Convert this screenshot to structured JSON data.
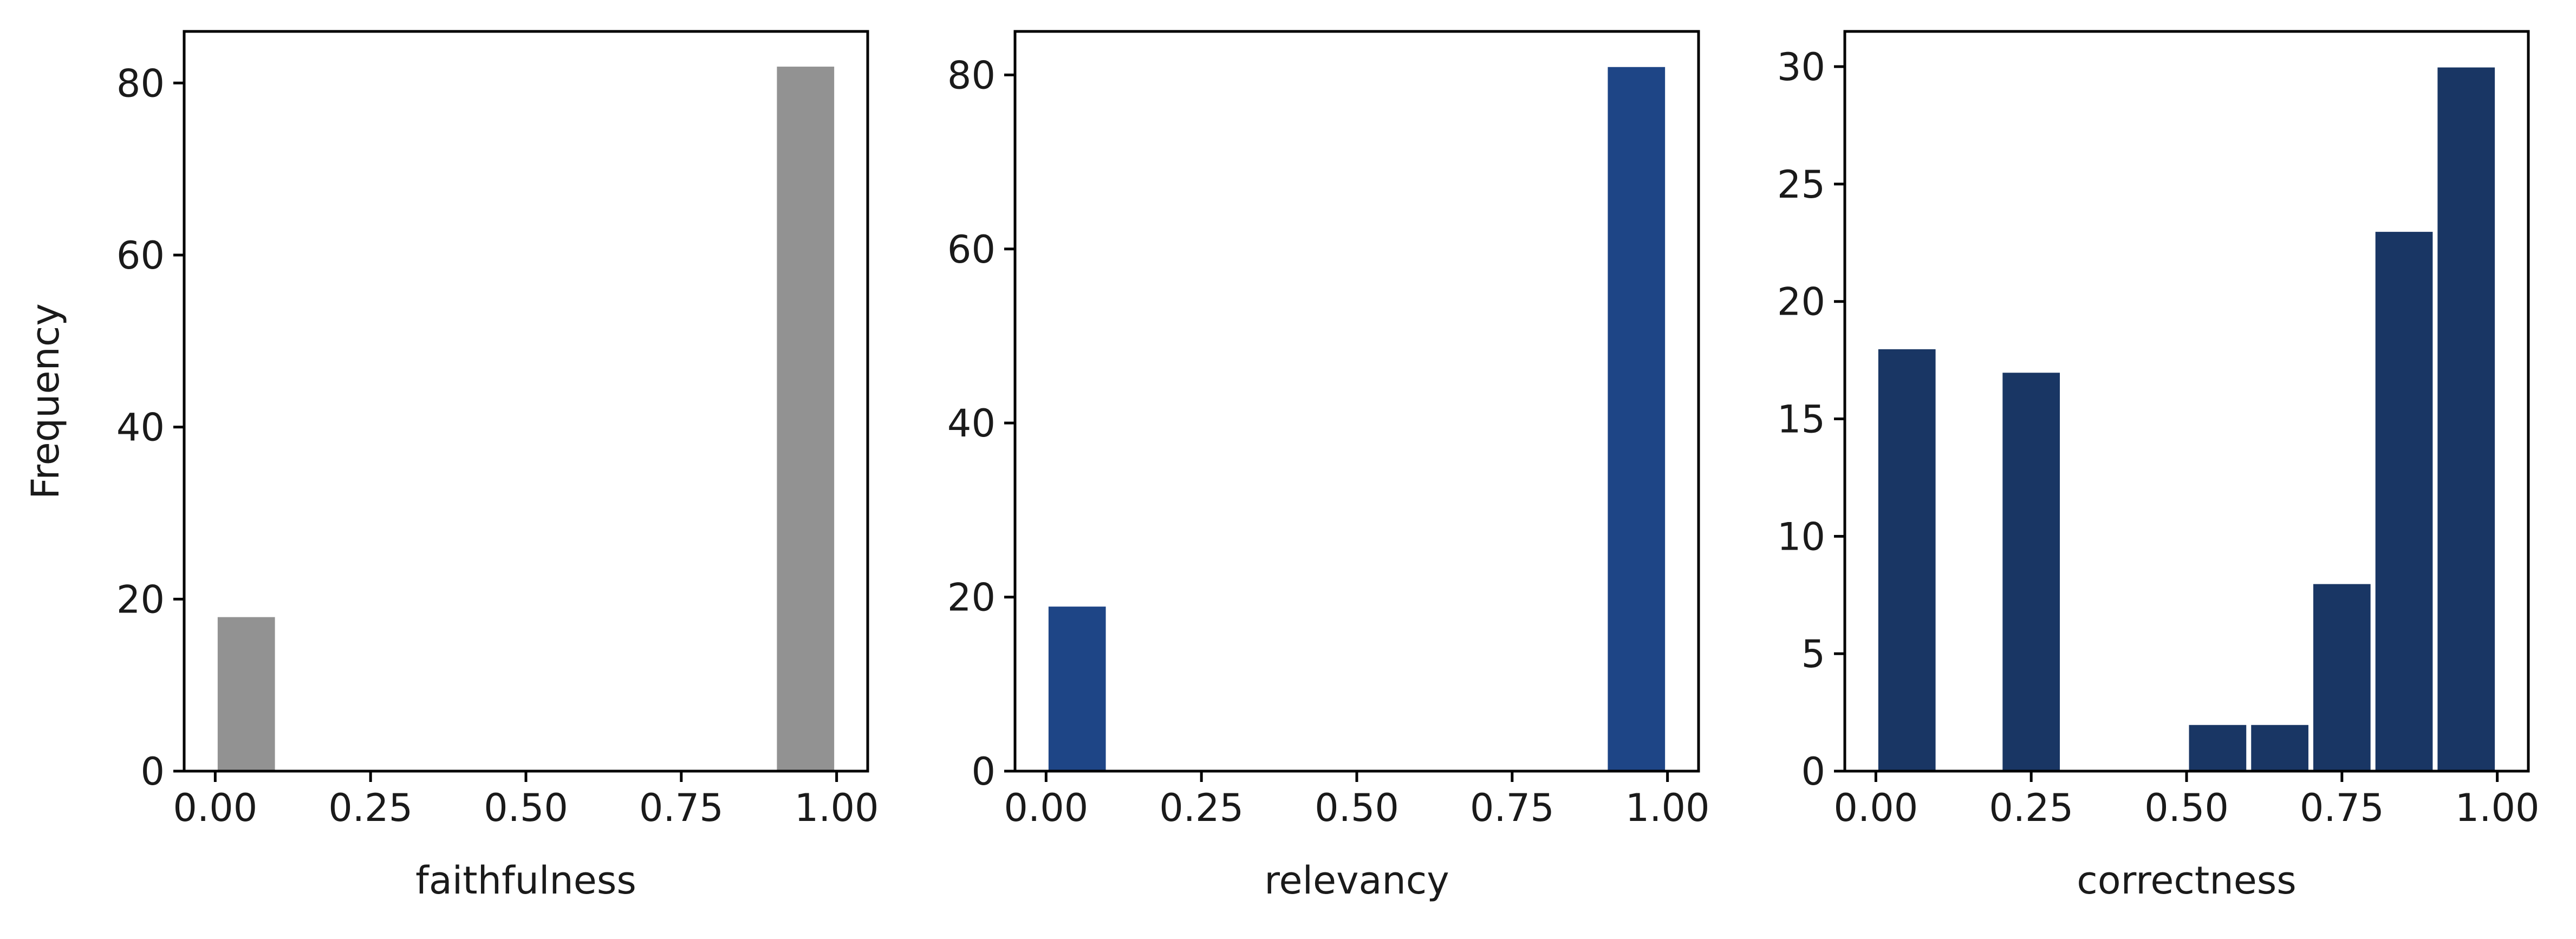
{
  "chart_data": [
    {
      "type": "bar",
      "xlabel": "faithfulness",
      "ylabel": "Frequency",
      "xlim": [
        -0.05,
        1.05
      ],
      "ylim": [
        0,
        86
      ],
      "xticks": [
        "0.00",
        "0.25",
        "0.50",
        "0.75",
        "1.00"
      ],
      "yticks": [
        "0",
        "20",
        "40",
        "60",
        "80"
      ],
      "color": "#929292",
      "bins": [
        {
          "x0": 0.0,
          "x1": 0.1,
          "count": 18
        },
        {
          "x0": 0.9,
          "x1": 1.0,
          "count": 82
        }
      ]
    },
    {
      "type": "bar",
      "xlabel": "relevancy",
      "ylabel": "",
      "xlim": [
        -0.05,
        1.05
      ],
      "ylim": [
        0,
        85
      ],
      "xticks": [
        "0.00",
        "0.25",
        "0.50",
        "0.75",
        "1.00"
      ],
      "yticks": [
        "0",
        "20",
        "40",
        "60",
        "80"
      ],
      "color": "#1e4586",
      "bins": [
        {
          "x0": 0.0,
          "x1": 0.1,
          "count": 19
        },
        {
          "x0": 0.9,
          "x1": 1.0,
          "count": 81
        }
      ]
    },
    {
      "type": "bar",
      "xlabel": "correctness",
      "ylabel": "",
      "xlim": [
        -0.05,
        1.05
      ],
      "ylim": [
        0,
        31.5
      ],
      "xticks": [
        "0.00",
        "0.25",
        "0.50",
        "0.75",
        "1.00"
      ],
      "yticks": [
        "0",
        "5",
        "10",
        "15",
        "20",
        "25",
        "30"
      ],
      "color": "#193664",
      "bins": [
        {
          "x0": 0.0,
          "x1": 0.1,
          "count": 18
        },
        {
          "x0": 0.2,
          "x1": 0.3,
          "count": 17
        },
        {
          "x0": 0.5,
          "x1": 0.6,
          "count": 2
        },
        {
          "x0": 0.6,
          "x1": 0.7,
          "count": 2
        },
        {
          "x0": 0.7,
          "x1": 0.8,
          "count": 8
        },
        {
          "x0": 0.8,
          "x1": 0.9,
          "count": 23
        },
        {
          "x0": 0.9,
          "x1": 1.0,
          "count": 30
        }
      ]
    }
  ]
}
